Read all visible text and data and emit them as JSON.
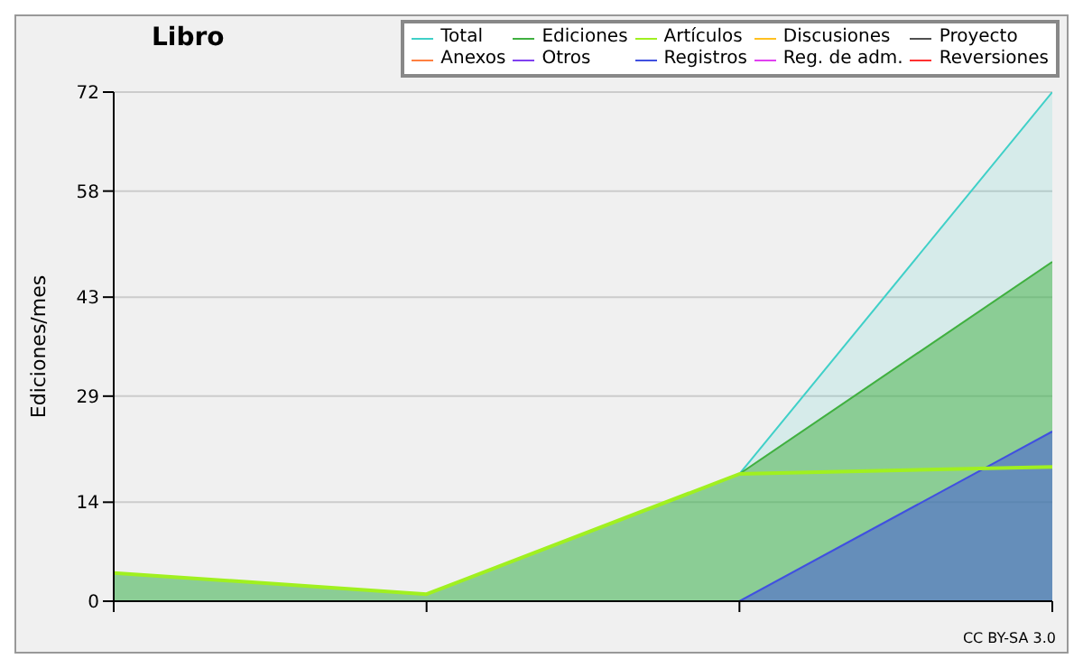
{
  "chart_data": {
    "type": "area",
    "title": "Libro",
    "ylabel": "Ediciones/mes",
    "categories": [
      null,
      null,
      null,
      null
    ],
    "series": [
      {
        "name": "Total",
        "color": "#40d0c8",
        "values": [
          4,
          1,
          18,
          72
        ]
      },
      {
        "name": "Ediciones",
        "color": "#40b040",
        "values": [
          4,
          1,
          18,
          48
        ]
      },
      {
        "name": "Artículos",
        "type": "line",
        "color": "#a0f020",
        "values": [
          4,
          1,
          18,
          19
        ]
      },
      {
        "name": "Discusiones",
        "type": "line",
        "color": "#ffc020",
        "values": [
          null,
          null,
          null,
          null
        ]
      },
      {
        "name": "Proyecto",
        "type": "line",
        "color": "#505050",
        "values": [
          null,
          null,
          null,
          null
        ]
      },
      {
        "name": "Anexos",
        "type": "line",
        "color": "#ff8040",
        "values": [
          null,
          null,
          null,
          null
        ]
      },
      {
        "name": "Otros",
        "type": "line",
        "color": "#8040f0",
        "values": [
          null,
          null,
          null,
          null
        ]
      },
      {
        "name": "Registros",
        "color": "#4050e0",
        "values": [
          null,
          null,
          0,
          24
        ]
      },
      {
        "name": "Reg. de adm.",
        "type": "line",
        "color": "#e040f0",
        "values": [
          null,
          null,
          null,
          null
        ]
      },
      {
        "name": "Reversiones",
        "type": "line",
        "color": "#ff3030",
        "values": [
          null,
          null,
          null,
          null
        ]
      }
    ],
    "ylim": [
      0,
      72
    ],
    "yticks": [
      0,
      14,
      29,
      43,
      58,
      72
    ],
    "grid": "y",
    "legend": "top right",
    "annotations": [
      "CC BY-SA 3.0"
    ]
  }
}
